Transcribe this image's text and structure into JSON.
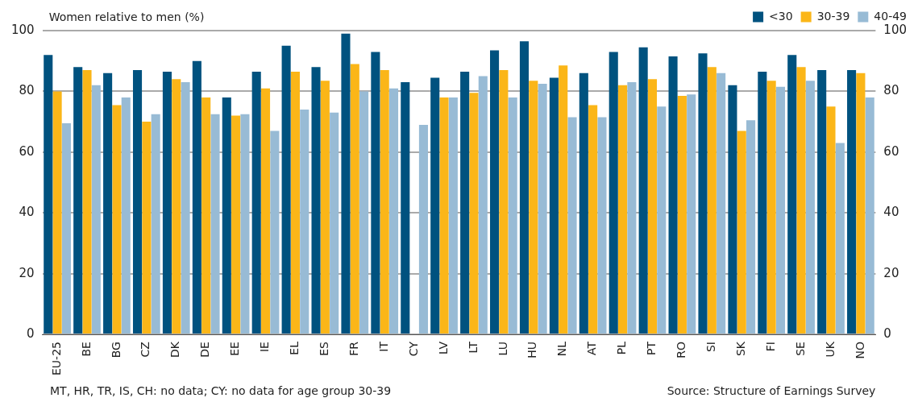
{
  "chart_data": {
    "type": "bar",
    "ylabel": "Women relative to men (%)",
    "categories": [
      "EU-25",
      "BE",
      "BG",
      "CZ",
      "DK",
      "DE",
      "EE",
      "IE",
      "EL",
      "ES",
      "FR",
      "IT",
      "CY",
      "LV",
      "LT",
      "LU",
      "HU",
      "NL",
      "AT",
      "PL",
      "PT",
      "RO",
      "SI",
      "SK",
      "FI",
      "SE",
      "UK",
      "NO"
    ],
    "series": [
      {
        "name": "<30",
        "color": "#00527f",
        "values": [
          92,
          88,
          86,
          87,
          86.5,
          90,
          78,
          86.5,
          95,
          88,
          99,
          93,
          83,
          84.5,
          86.5,
          93.5,
          96.5,
          84.5,
          86,
          93,
          94.5,
          91.5,
          92.5,
          82,
          86.5,
          92,
          87,
          87
        ]
      },
      {
        "name": "30-39",
        "color": "#fbb618",
        "values": [
          80,
          87,
          75.5,
          70,
          84,
          78,
          72,
          81,
          86.5,
          83.5,
          89,
          87,
          null,
          78,
          79.5,
          87,
          83.5,
          88.5,
          75.5,
          82,
          84,
          78.5,
          88,
          67,
          83.5,
          88,
          75,
          86
        ]
      },
      {
        "name": "40-49",
        "color": "#98bbd5",
        "values": [
          69.5,
          82,
          78,
          72.5,
          83,
          72.5,
          72.5,
          67,
          74,
          73,
          80,
          81,
          69,
          78,
          85,
          78,
          82.5,
          71.5,
          71.5,
          83,
          75,
          79,
          86,
          70.5,
          81.5,
          83.5,
          63,
          78
        ]
      }
    ],
    "ylim": [
      0,
      100
    ],
    "yticks": [
      0,
      20,
      40,
      60,
      80,
      100
    ],
    "y2lim": [
      0,
      100
    ],
    "y2ticks": [
      0,
      20,
      40,
      60,
      80,
      100
    ],
    "grid": "y",
    "legend": "top right",
    "annotations": [
      "MT, HR, TR, IS, CH: no data; CY: no data for age group 30-39",
      "Source: Structure of Earnings Survey"
    ]
  }
}
